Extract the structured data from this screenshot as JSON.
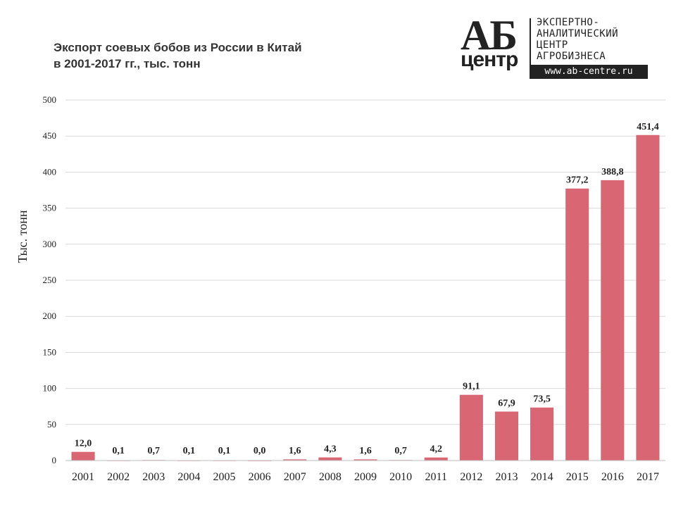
{
  "chart_data": {
    "type": "bar",
    "title_lines": [
      "Экспорт соевых бобов из России в Китай",
      "в 2001-2017 гг., тыс. тонн"
    ],
    "ylabel": "Тыс. тонн",
    "xlabel": "",
    "ylim": [
      0,
      500
    ],
    "yticks": [
      0,
      50,
      100,
      150,
      200,
      250,
      300,
      350,
      400,
      450,
      500
    ],
    "grid": true,
    "categories": [
      "2001",
      "2002",
      "2003",
      "2004",
      "2005",
      "2006",
      "2007",
      "2008",
      "2009",
      "2010",
      "2011",
      "2012",
      "2013",
      "2014",
      "2015",
      "2016",
      "2017"
    ],
    "values": [
      12.0,
      0.1,
      0.7,
      0.1,
      0.1,
      0.0,
      1.6,
      4.3,
      1.6,
      0.7,
      4.2,
      91.1,
      67.9,
      73.5,
      377.2,
      388.8,
      451.4
    ],
    "value_labels": [
      "12,0",
      "0,1",
      "0,7",
      "0,1",
      "0,1",
      "0,0",
      "1,6",
      "4,3",
      "1,6",
      "0,7",
      "4,2",
      "91,1",
      "67,9",
      "73,5",
      "377,2",
      "388,8",
      "451,4"
    ],
    "bar_color": "#d96673",
    "grid_color": "#d9d9d9"
  },
  "logo": {
    "mark_top": "АБ",
    "mark_bottom": "центр",
    "lines": [
      "ЭКСПЕРТНО-",
      "АНАЛИТИЧЕСКИЙ",
      "ЦЕНТР",
      "АГРОБИЗНЕСА"
    ],
    "url": "www.ab-centre.ru"
  }
}
